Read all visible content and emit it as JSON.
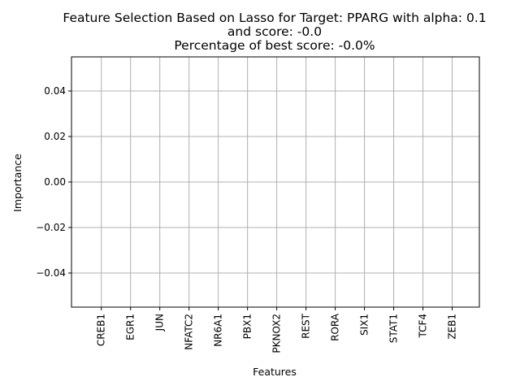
{
  "chart_data": {
    "type": "bar",
    "title_lines": [
      "Feature Selection Based on Lasso for Target: PPARG with alpha: 0.1",
      "and score: -0.0",
      "Percentage of best score: -0.0%"
    ],
    "xlabel": "Features",
    "ylabel": "Importance",
    "categories": [
      "CREB1",
      "EGR1",
      "JUN",
      "NFATC2",
      "NR6A1",
      "PBX1",
      "PKNOX2",
      "REST",
      "RORA",
      "SIX1",
      "STAT1",
      "TCF4",
      "ZEB1"
    ],
    "values": [
      0,
      0,
      0,
      0,
      0,
      0,
      0,
      0,
      0,
      0,
      0,
      0,
      0
    ],
    "ylim": [
      -0.055,
      0.055
    ],
    "yticks": [
      -0.04,
      -0.02,
      0.0,
      0.02,
      0.04
    ],
    "ytick_labels": [
      "−0.04",
      "−0.02",
      "0.00",
      "0.02",
      "0.04"
    ],
    "grid": true,
    "grid_color": "#b0b0b0",
    "bar_color": "#1f77b4"
  }
}
